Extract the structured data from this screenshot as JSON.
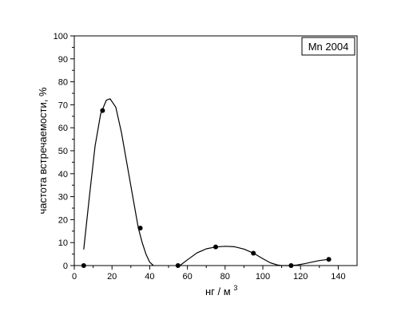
{
  "chart_data": {
    "type": "scatter",
    "title": "",
    "xlabel": "нг / м",
    "xlabel_superscript": "3",
    "ylabel": "частота встречаемости, %",
    "xlim": [
      0,
      150
    ],
    "ylim": [
      0,
      100
    ],
    "xticks": [
      0,
      20,
      40,
      60,
      80,
      100,
      120,
      140
    ],
    "yticks": [
      0,
      10,
      20,
      30,
      40,
      50,
      60,
      70,
      80,
      90,
      100
    ],
    "grid": false,
    "legend": {
      "placement": "top-right",
      "text": "Mn 2004"
    },
    "series": [
      {
        "x": [
          5,
          15,
          35,
          55,
          75,
          95,
          115,
          135
        ],
        "y": [
          0,
          67.5,
          16.3,
          0,
          8.1,
          5.4,
          0,
          2.7
        ]
      }
    ],
    "fit_curve": [
      [
        5,
        7
      ],
      [
        8,
        30
      ],
      [
        11,
        52
      ],
      [
        14,
        66
      ],
      [
        17,
        72
      ],
      [
        19,
        72.6
      ],
      [
        22,
        69
      ],
      [
        25,
        58
      ],
      [
        28,
        44
      ],
      [
        31,
        30
      ],
      [
        34,
        16.3
      ],
      [
        36,
        10
      ],
      [
        38,
        5
      ],
      [
        40,
        1.5
      ],
      [
        42,
        0
      ],
      null,
      [
        56,
        0
      ],
      [
        60,
        2.5
      ],
      [
        65,
        5.5
      ],
      [
        70,
        7.3
      ],
      [
        75,
        8.1
      ],
      [
        80,
        8.4
      ],
      [
        85,
        8.2
      ],
      [
        90,
        7.2
      ],
      [
        95,
        5.4
      ],
      [
        100,
        3
      ],
      [
        104,
        1.2
      ],
      [
        108,
        0.2
      ],
      [
        110,
        0
      ],
      [
        114,
        0
      ],
      [
        118,
        0.2
      ],
      [
        122,
        0.8
      ],
      [
        126,
        1.5
      ],
      [
        130,
        2.2
      ],
      [
        135,
        2.7
      ]
    ],
    "colors": {
      "marker": "#000000",
      "curve": "#000000",
      "frame": "#000000"
    }
  }
}
